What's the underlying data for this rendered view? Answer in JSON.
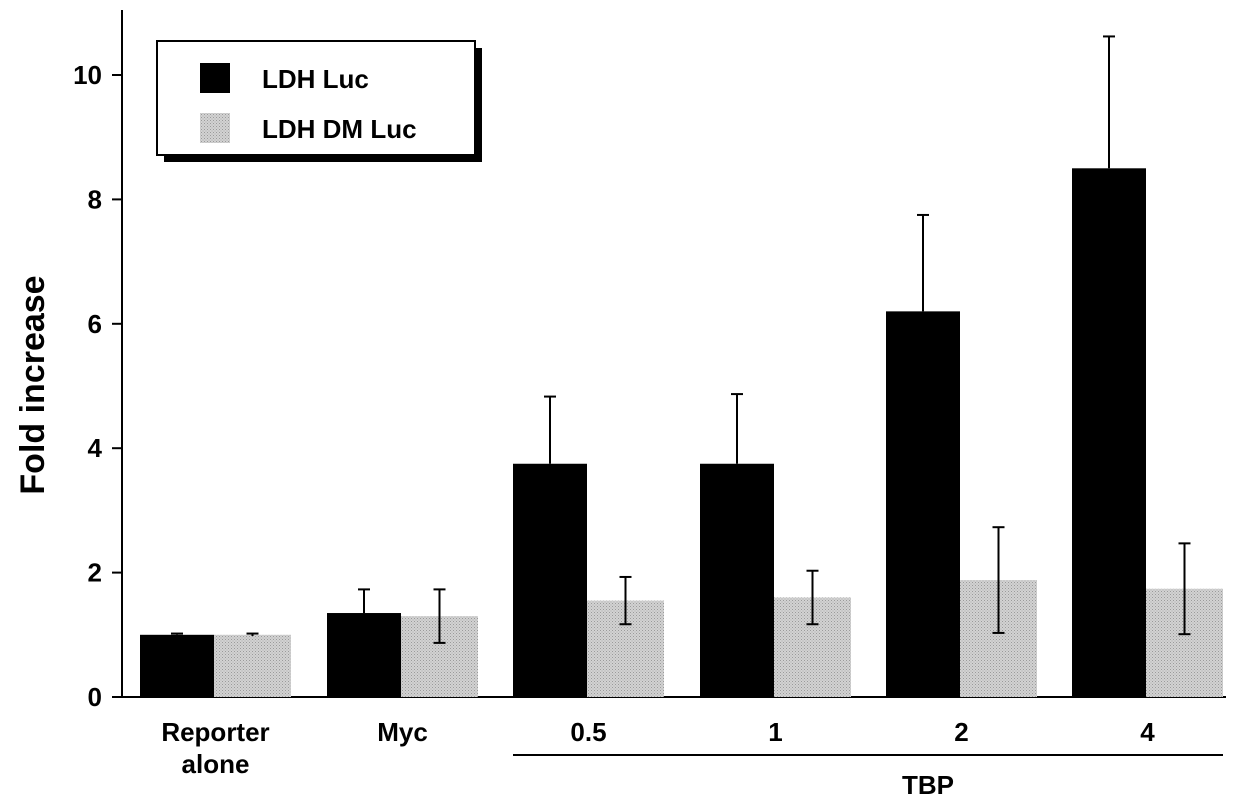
{
  "chart_data": {
    "type": "bar",
    "ylabel": "Fold increase",
    "ylim": [
      0,
      11
    ],
    "yticks": [
      0,
      2,
      4,
      6,
      8,
      10
    ],
    "grid": false,
    "legend_position": "top-left",
    "categories": [
      [
        "Reporter",
        "alone"
      ],
      [
        "Myc"
      ],
      [
        "0.5"
      ],
      [
        "1"
      ],
      [
        "2"
      ],
      [
        "4"
      ]
    ],
    "group_label": {
      "text": "TBP",
      "from_category": 2,
      "to_category": 5
    },
    "series": [
      {
        "name": "LDH Luc",
        "color": "#000000",
        "values": [
          1.0,
          1.35,
          3.75,
          3.75,
          6.2,
          8.5
        ],
        "errors": [
          0.02,
          0.38,
          1.08,
          1.12,
          1.55,
          2.12
        ]
      },
      {
        "name": "LDH DM Luc",
        "color": "#c8c8c8",
        "values": [
          1.0,
          1.3,
          1.55,
          1.6,
          1.88,
          1.74
        ],
        "errors": [
          0.02,
          0.43,
          0.38,
          0.43,
          0.85,
          0.73
        ]
      }
    ]
  }
}
